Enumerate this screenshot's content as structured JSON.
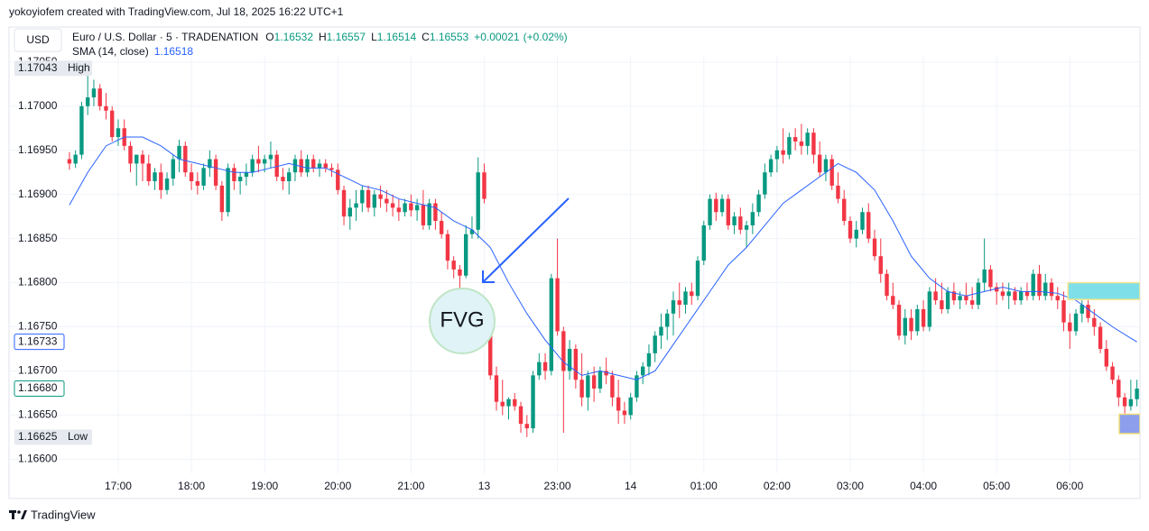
{
  "chart_data": {
    "type": "candlestick",
    "attribution": "yokoyiofem created with TradingView.com, Jul 18, 2025 16:22 UTC+1",
    "currency": "USD",
    "symbol": "Euro / U.S. Dollar · 5 · TRADENATION",
    "ohlc_legend": [
      {
        "key": "O",
        "value": 1.16532
      },
      {
        "key": "H",
        "value": 1.16557
      },
      {
        "key": "L",
        "value": 1.16514
      },
      {
        "key": "C",
        "value": 1.16553
      }
    ],
    "change": {
      "value": 0.00021,
      "label": "+0.00021"
    },
    "change_pct": {
      "value": 0.02,
      "label": "(+0.02%)"
    },
    "annotation": "FVG",
    "brand": "TradingView",
    "up_color": "#089981",
    "down_color": "#f23645",
    "ylim": [
      1.16584,
      1.17057
    ],
    "xlim": [
      -9.9,
      175.5
    ],
    "yticks": [
      {
        "value": 1.1705,
        "label": "1.17050"
      },
      {
        "value": 1.17,
        "label": "1.17000"
      },
      {
        "value": 1.1695,
        "label": "1.16950"
      },
      {
        "value": 1.169,
        "label": "1.16900"
      },
      {
        "value": 1.1685,
        "label": "1.16850"
      },
      {
        "value": 1.168,
        "label": "1.16800"
      },
      {
        "value": 1.1675,
        "label": "1.16750"
      },
      {
        "value": 1.167,
        "label": "1.16700"
      },
      {
        "value": 1.1665,
        "label": "1.16650"
      },
      {
        "value": 1.166,
        "label": "1.16600"
      }
    ],
    "xticks": [
      {
        "value": 8,
        "label": "17:00"
      },
      {
        "value": 20,
        "label": "18:00"
      },
      {
        "value": 32,
        "label": "19:00"
      },
      {
        "value": 44,
        "label": "20:00"
      },
      {
        "value": 56,
        "label": "21:00"
      },
      {
        "value": 68,
        "label": "13"
      },
      {
        "value": 80,
        "label": "23:00"
      },
      {
        "value": 92,
        "label": "14"
      },
      {
        "value": 104,
        "label": "01:00"
      },
      {
        "value": 116,
        "label": "02:00"
      },
      {
        "value": 128,
        "label": "03:00"
      },
      {
        "value": 140,
        "label": "04:00"
      },
      {
        "value": 152,
        "label": "05:00"
      },
      {
        "value": 164,
        "label": "06:00"
      }
    ],
    "grid": true,
    "markers": {
      "high": {
        "value": 1.17043,
        "text": "High"
      },
      "low": {
        "value": 1.16625,
        "text": "Low"
      },
      "sma_last": {
        "value": 1.16733,
        "color": "#2962ff"
      },
      "last": {
        "value": 1.1668,
        "label": "1.16680",
        "color": "#089981"
      }
    },
    "zones": [
      {
        "x_from": 163.7,
        "x_to": 175.5,
        "top": 1.168,
        "bottom": 1.16781,
        "color": "#7fdfe8",
        "border": "#f3e58a"
      },
      {
        "x_from": 172.1,
        "x_to": 175.5,
        "top": 1.16651,
        "bottom": 1.16629,
        "color": "#8c9eec",
        "border": "#f3e07a"
      }
    ],
    "sma": {
      "name": "SMA (14, close)",
      "value": 1.16518,
      "color": "#2962ff",
      "x": [
        0,
        3,
        6,
        9,
        12,
        15,
        18,
        21,
        24,
        27,
        30,
        33,
        36,
        39,
        42,
        45,
        48,
        51,
        54,
        57,
        60,
        63,
        66,
        69,
        72,
        75,
        78,
        81,
        84,
        87,
        90,
        93,
        96,
        99,
        102,
        105,
        108,
        111,
        114,
        117,
        120,
        123,
        126,
        129,
        132,
        135,
        138,
        141,
        144,
        147,
        150,
        153,
        156,
        159,
        162,
        165,
        168,
        171,
        174,
        175
      ],
      "values": [
        1.16888,
        1.16925,
        1.16955,
        1.16965,
        1.16965,
        1.16955,
        1.1694,
        1.16935,
        1.1693,
        1.16925,
        1.16925,
        1.1693,
        1.16935,
        1.1693,
        1.1693,
        1.1692,
        1.1691,
        1.16905,
        1.16895,
        1.1689,
        1.16885,
        1.1687,
        1.1686,
        1.1684,
        1.168,
        1.16765,
        1.16735,
        1.1671,
        1.16695,
        1.167,
        1.16695,
        1.1669,
        1.167,
        1.1673,
        1.1676,
        1.1679,
        1.1682,
        1.1684,
        1.16865,
        1.1689,
        1.16905,
        1.1692,
        1.16935,
        1.16925,
        1.16905,
        1.1687,
        1.1683,
        1.16805,
        1.1679,
        1.16785,
        1.1679,
        1.16795,
        1.1679,
        1.1679,
        1.16788,
        1.1678,
        1.16765,
        1.1675,
        1.16737,
        1.16733
      ]
    },
    "ohlc": [
      [
        1.1694,
        1.16948,
        1.16928,
        1.16935
      ],
      [
        1.16935,
        1.1695,
        1.1693,
        1.16945
      ],
      [
        1.16945,
        1.17005,
        1.1694,
        1.17
      ],
      [
        1.17,
        1.17043,
        1.1699,
        1.1701
      ],
      [
        1.1701,
        1.1703,
        1.17,
        1.1702
      ],
      [
        1.1702,
        1.17025,
        1.16995,
        1.17
      ],
      [
        1.17,
        1.17015,
        1.16985,
        1.16995
      ],
      [
        1.16995,
        1.17,
        1.1696,
        1.16965
      ],
      [
        1.16965,
        1.16985,
        1.16955,
        1.16975
      ],
      [
        1.16975,
        1.16985,
        1.1695,
        1.16955
      ],
      [
        1.16955,
        1.1696,
        1.16925,
        1.16935
      ],
      [
        1.16935,
        1.16945,
        1.1691,
        1.16945
      ],
      [
        1.16945,
        1.1695,
        1.16915,
        1.16935
      ],
      [
        1.16935,
        1.16945,
        1.1691,
        1.16915
      ],
      [
        1.16915,
        1.1693,
        1.16905,
        1.16925
      ],
      [
        1.16925,
        1.16935,
        1.16895,
        1.16905
      ],
      [
        1.16905,
        1.16925,
        1.169,
        1.16918
      ],
      [
        1.16918,
        1.16945,
        1.1691,
        1.1694
      ],
      [
        1.1694,
        1.16962,
        1.16925,
        1.16955
      ],
      [
        1.16955,
        1.1696,
        1.1692,
        1.16925
      ],
      [
        1.16925,
        1.16935,
        1.16905,
        1.16915
      ],
      [
        1.16915,
        1.16925,
        1.169,
        1.1691
      ],
      [
        1.1691,
        1.16935,
        1.16905,
        1.1693
      ],
      [
        1.1693,
        1.1695,
        1.1692,
        1.1694
      ],
      [
        1.1694,
        1.16945,
        1.16905,
        1.1691
      ],
      [
        1.1691,
        1.16915,
        1.1687,
        1.1688
      ],
      [
        1.1688,
        1.16935,
        1.16875,
        1.1693
      ],
      [
        1.1693,
        1.16935,
        1.16905,
        1.16915
      ],
      [
        1.16915,
        1.16925,
        1.169,
        1.1692
      ],
      [
        1.1692,
        1.16935,
        1.1691,
        1.16925
      ],
      [
        1.16925,
        1.16945,
        1.1692,
        1.1694
      ],
      [
        1.1694,
        1.16955,
        1.16925,
        1.16935
      ],
      [
        1.16935,
        1.16945,
        1.16925,
        1.1694
      ],
      [
        1.1694,
        1.1696,
        1.1693,
        1.16945
      ],
      [
        1.16945,
        1.1695,
        1.16915,
        1.1692
      ],
      [
        1.1692,
        1.1693,
        1.16905,
        1.16915
      ],
      [
        1.16915,
        1.1693,
        1.169,
        1.16925
      ],
      [
        1.16925,
        1.16945,
        1.16915,
        1.1694
      ],
      [
        1.1694,
        1.1695,
        1.1692,
        1.16925
      ],
      [
        1.16925,
        1.16945,
        1.1692,
        1.1694
      ],
      [
        1.1694,
        1.16945,
        1.16925,
        1.1693
      ],
      [
        1.1693,
        1.1694,
        1.1692,
        1.16935
      ],
      [
        1.16935,
        1.1694,
        1.16925,
        1.1693
      ],
      [
        1.1693,
        1.16935,
        1.1692,
        1.16928
      ],
      [
        1.16928,
        1.16935,
        1.169,
        1.16905
      ],
      [
        1.16905,
        1.1691,
        1.16865,
        1.16875
      ],
      [
        1.16875,
        1.16895,
        1.1686,
        1.16885
      ],
      [
        1.16885,
        1.16905,
        1.1687,
        1.1689
      ],
      [
        1.1689,
        1.1691,
        1.1688,
        1.16905
      ],
      [
        1.16905,
        1.1691,
        1.1688,
        1.16885
      ],
      [
        1.16885,
        1.16905,
        1.16875,
        1.169
      ],
      [
        1.169,
        1.1691,
        1.16885,
        1.16895
      ],
      [
        1.16895,
        1.16905,
        1.1688,
        1.1689
      ],
      [
        1.1689,
        1.169,
        1.16875,
        1.16885
      ],
      [
        1.16885,
        1.16895,
        1.1687,
        1.1688
      ],
      [
        1.1688,
        1.16895,
        1.16875,
        1.1689
      ],
      [
        1.1689,
        1.169,
        1.16875,
        1.16882
      ],
      [
        1.16882,
        1.16895,
        1.1687,
        1.16888
      ],
      [
        1.16888,
        1.16905,
        1.1686,
        1.16865
      ],
      [
        1.16865,
        1.16895,
        1.1686,
        1.1689
      ],
      [
        1.1689,
        1.16895,
        1.1686,
        1.1687
      ],
      [
        1.1687,
        1.1688,
        1.1685,
        1.16855
      ],
      [
        1.16855,
        1.1686,
        1.16815,
        1.16825
      ],
      [
        1.16825,
        1.1683,
        1.16805,
        1.16815
      ],
      [
        1.16815,
        1.1682,
        1.1679,
        1.16808
      ],
      [
        1.16808,
        1.16865,
        1.16805,
        1.16855
      ],
      [
        1.16855,
        1.16875,
        1.1685,
        1.1686
      ],
      [
        1.1686,
        1.16942,
        1.1685,
        1.16925
      ],
      [
        1.16925,
        1.16935,
        1.1689,
        1.16895
      ],
      [
        1.1674,
        1.16745,
        1.1669,
        1.16695
      ],
      [
        1.16695,
        1.16705,
        1.16655,
        1.16665
      ],
      [
        1.16665,
        1.1669,
        1.1665,
        1.1666
      ],
      [
        1.1666,
        1.1667,
        1.16645,
        1.16668
      ],
      [
        1.16668,
        1.16675,
        1.16655,
        1.1666
      ],
      [
        1.1666,
        1.16665,
        1.1663,
        1.1664
      ],
      [
        1.1664,
        1.1665,
        1.16625,
        1.16635
      ],
      [
        1.16635,
        1.167,
        1.1663,
        1.16695
      ],
      [
        1.16695,
        1.1672,
        1.1669,
        1.1671
      ],
      [
        1.1671,
        1.1672,
        1.1669,
        1.167
      ],
      [
        1.167,
        1.1681,
        1.16695,
        1.16805
      ],
      [
        1.16805,
        1.1685,
        1.1674,
        1.16745
      ],
      [
        1.16745,
        1.1675,
        1.1663,
        1.167
      ],
      [
        1.167,
        1.16735,
        1.1669,
        1.16725
      ],
      [
        1.16725,
        1.1673,
        1.1668,
        1.1669
      ],
      [
        1.1669,
        1.1672,
        1.1666,
        1.1667
      ],
      [
        1.1667,
        1.167,
        1.16655,
        1.16695
      ],
      [
        1.16695,
        1.16705,
        1.16665,
        1.1668
      ],
      [
        1.1668,
        1.16705,
        1.16675,
        1.167
      ],
      [
        1.167,
        1.16715,
        1.16685,
        1.16695
      ],
      [
        1.16695,
        1.167,
        1.1666,
        1.1667
      ],
      [
        1.1667,
        1.1669,
        1.1664,
        1.16655
      ],
      [
        1.16655,
        1.16665,
        1.1664,
        1.1665
      ],
      [
        1.1665,
        1.16675,
        1.16645,
        1.1667
      ],
      [
        1.1667,
        1.167,
        1.16665,
        1.16695
      ],
      [
        1.16695,
        1.1671,
        1.16685,
        1.16705
      ],
      [
        1.16705,
        1.1673,
        1.16695,
        1.1672
      ],
      [
        1.1672,
        1.16745,
        1.1671,
        1.1674
      ],
      [
        1.1674,
        1.16765,
        1.16725,
        1.1675
      ],
      [
        1.1675,
        1.1677,
        1.16735,
        1.16765
      ],
      [
        1.16765,
        1.1679,
        1.1674,
        1.1678
      ],
      [
        1.1678,
        1.168,
        1.1676,
        1.16775
      ],
      [
        1.16775,
        1.16795,
        1.16765,
        1.1679
      ],
      [
        1.1679,
        1.168,
        1.16775,
        1.16785
      ],
      [
        1.16785,
        1.1683,
        1.1678,
        1.16825
      ],
      [
        1.16825,
        1.1687,
        1.1682,
        1.16865
      ],
      [
        1.16865,
        1.169,
        1.1686,
        1.16895
      ],
      [
        1.16895,
        1.16902,
        1.1687,
        1.1688
      ],
      [
        1.1688,
        1.169,
        1.16875,
        1.16895
      ],
      [
        1.16895,
        1.169,
        1.1686,
        1.16865
      ],
      [
        1.16865,
        1.1688,
        1.16855,
        1.16875
      ],
      [
        1.16875,
        1.16885,
        1.16855,
        1.1686
      ],
      [
        1.1686,
        1.1687,
        1.1684,
        1.16865
      ],
      [
        1.16865,
        1.1689,
        1.16855,
        1.1688
      ],
      [
        1.1688,
        1.16905,
        1.16875,
        1.169
      ],
      [
        1.169,
        1.16935,
        1.16895,
        1.16925
      ],
      [
        1.16925,
        1.16945,
        1.1692,
        1.1694
      ],
      [
        1.1694,
        1.16955,
        1.16925,
        1.1695
      ],
      [
        1.1695,
        1.16975,
        1.16935,
        1.16945
      ],
      [
        1.16945,
        1.1697,
        1.1694,
        1.16965
      ],
      [
        1.16965,
        1.16975,
        1.1695,
        1.1696
      ],
      [
        1.1696,
        1.1698,
        1.16945,
        1.16955
      ],
      [
        1.16955,
        1.16975,
        1.16945,
        1.1697
      ],
      [
        1.1697,
        1.16975,
        1.16935,
        1.16945
      ],
      [
        1.16945,
        1.1696,
        1.1692,
        1.16925
      ],
      [
        1.16925,
        1.16945,
        1.16915,
        1.1694
      ],
      [
        1.1694,
        1.16945,
        1.16905,
        1.1691
      ],
      [
        1.1691,
        1.16925,
        1.1689,
        1.16895
      ],
      [
        1.16895,
        1.16905,
        1.16865,
        1.1687
      ],
      [
        1.1687,
        1.16875,
        1.16845,
        1.1685
      ],
      [
        1.1685,
        1.1687,
        1.1684,
        1.1686
      ],
      [
        1.1686,
        1.16885,
        1.16855,
        1.1688
      ],
      [
        1.1688,
        1.1689,
        1.16845,
        1.1685
      ],
      [
        1.1685,
        1.1686,
        1.16825,
        1.1683
      ],
      [
        1.1683,
        1.1685,
        1.168,
        1.1681
      ],
      [
        1.1681,
        1.16815,
        1.1678,
        1.16785
      ],
      [
        1.16785,
        1.168,
        1.1677,
        1.16775
      ],
      [
        1.16775,
        1.1678,
        1.16735,
        1.1674
      ],
      [
        1.1674,
        1.1677,
        1.1673,
        1.1676
      ],
      [
        1.1676,
        1.1677,
        1.16735,
        1.16745
      ],
      [
        1.16745,
        1.16775,
        1.1674,
        1.1677
      ],
      [
        1.1677,
        1.1678,
        1.16745,
        1.1675
      ],
      [
        1.1675,
        1.16795,
        1.16745,
        1.1679
      ],
      [
        1.1679,
        1.16805,
        1.16775,
        1.1678
      ],
      [
        1.1678,
        1.168,
        1.16765,
        1.1677
      ],
      [
        1.1677,
        1.16795,
        1.16765,
        1.1679
      ],
      [
        1.1679,
        1.168,
        1.16775,
        1.1678
      ],
      [
        1.1678,
        1.1679,
        1.1677,
        1.16785
      ],
      [
        1.16785,
        1.168,
        1.16775,
        1.1678
      ],
      [
        1.1678,
        1.16795,
        1.1677,
        1.16775
      ],
      [
        1.16775,
        1.16805,
        1.1677,
        1.168
      ],
      [
        1.168,
        1.1685,
        1.1679,
        1.16815
      ],
      [
        1.16815,
        1.1682,
        1.1679,
        1.16795
      ],
      [
        1.16795,
        1.168,
        1.16775,
        1.1679
      ],
      [
        1.1679,
        1.168,
        1.1678,
        1.16785
      ],
      [
        1.16785,
        1.168,
        1.1677,
        1.1679
      ],
      [
        1.1679,
        1.16795,
        1.16775,
        1.1678
      ],
      [
        1.1678,
        1.16795,
        1.16775,
        1.1679
      ],
      [
        1.1679,
        1.168,
        1.1678,
        1.16785
      ],
      [
        1.16785,
        1.16815,
        1.1678,
        1.1681
      ],
      [
        1.1681,
        1.1682,
        1.1678,
        1.16785
      ],
      [
        1.16785,
        1.1681,
        1.1678,
        1.168
      ],
      [
        1.168,
        1.16805,
        1.1678,
        1.16785
      ],
      [
        1.16785,
        1.16795,
        1.1677,
        1.1678
      ],
      [
        1.1678,
        1.1679,
        1.16745,
        1.16755
      ],
      [
        1.16755,
        1.16765,
        1.16725,
        1.16745
      ],
      [
        1.16745,
        1.1677,
        1.1674,
        1.16765
      ],
      [
        1.16765,
        1.1678,
        1.16755,
        1.16775
      ],
      [
        1.16775,
        1.1678,
        1.16755,
        1.1676
      ],
      [
        1.1676,
        1.1677,
        1.1674,
        1.1675
      ],
      [
        1.1675,
        1.16755,
        1.1672,
        1.16725
      ],
      [
        1.16725,
        1.16735,
        1.167,
        1.16705
      ],
      [
        1.16705,
        1.1671,
        1.16685,
        1.1669
      ],
      [
        1.1669,
        1.16695,
        1.1666,
        1.1667
      ],
      [
        1.1667,
        1.16675,
        1.1665,
        1.1666
      ],
      [
        1.1666,
        1.1669,
        1.16655,
        1.16668
      ],
      [
        1.16668,
        1.1669,
        1.1666,
        1.1668
      ]
    ]
  }
}
